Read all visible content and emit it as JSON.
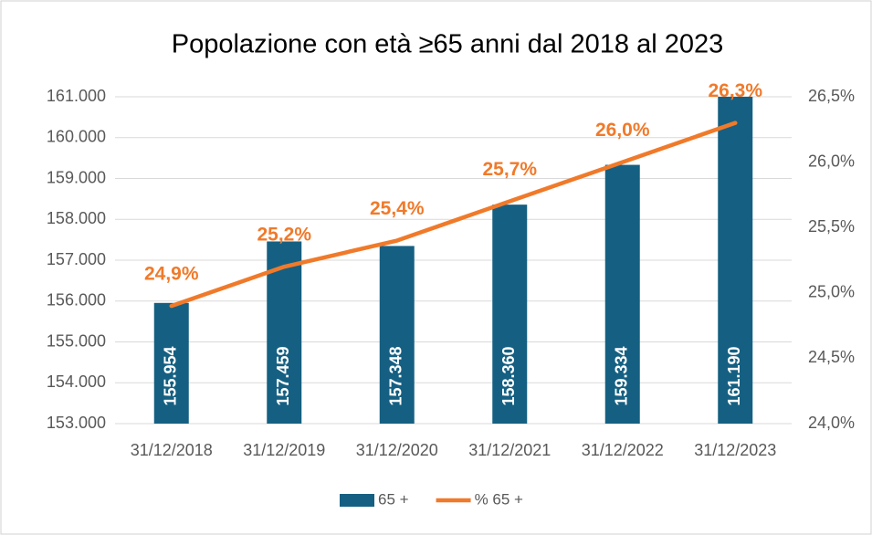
{
  "chart_data": {
    "type": "bar",
    "title": "Popolazione con età ≥65 anni dal 2018 al 2023",
    "categories": [
      "31/12/2018",
      "31/12/2019",
      "31/12/2020",
      "31/12/2021",
      "31/12/2022",
      "31/12/2023"
    ],
    "series": [
      {
        "name": "65 +",
        "color": "#156082",
        "values": [
          155954,
          157459,
          157348,
          158360,
          159334,
          161190
        ],
        "value_labels": [
          "155.954",
          "157.459",
          "157.348",
          "158.360",
          "159.334",
          "161.190"
        ]
      },
      {
        "name": "% 65 +",
        "color": "#f07a2a",
        "type": "line",
        "axis": "y2",
        "values": [
          24.9,
          25.2,
          25.4,
          25.7,
          26.0,
          26.3
        ],
        "value_labels": [
          "24,9%",
          "25,2%",
          "25,4%",
          "25,7%",
          "26,0%",
          "26,3%"
        ]
      }
    ],
    "ylim": [
      153000,
      161000
    ],
    "yticks": [
      {
        "value": 153000,
        "label": "153.000"
      },
      {
        "value": 154000,
        "label": "154.000"
      },
      {
        "value": 155000,
        "label": "155.000"
      },
      {
        "value": 156000,
        "label": "156.000"
      },
      {
        "value": 157000,
        "label": "157.000"
      },
      {
        "value": 158000,
        "label": "158.000"
      },
      {
        "value": 159000,
        "label": "159.000"
      },
      {
        "value": 160000,
        "label": "160.000"
      },
      {
        "value": 161000,
        "label": "161.000"
      }
    ],
    "y2lim": [
      24,
      26.5
    ],
    "y2ticks": [
      {
        "value": 24,
        "label": "24,0%"
      },
      {
        "value": 24.5,
        "label": "24,5%"
      },
      {
        "value": 25,
        "label": "25,0%"
      },
      {
        "value": 25.5,
        "label": "25,5%"
      },
      {
        "value": 26,
        "label": "26,0%"
      },
      {
        "value": 26.5,
        "label": "26,5%"
      }
    ],
    "grid": true,
    "legend": "bottom"
  }
}
